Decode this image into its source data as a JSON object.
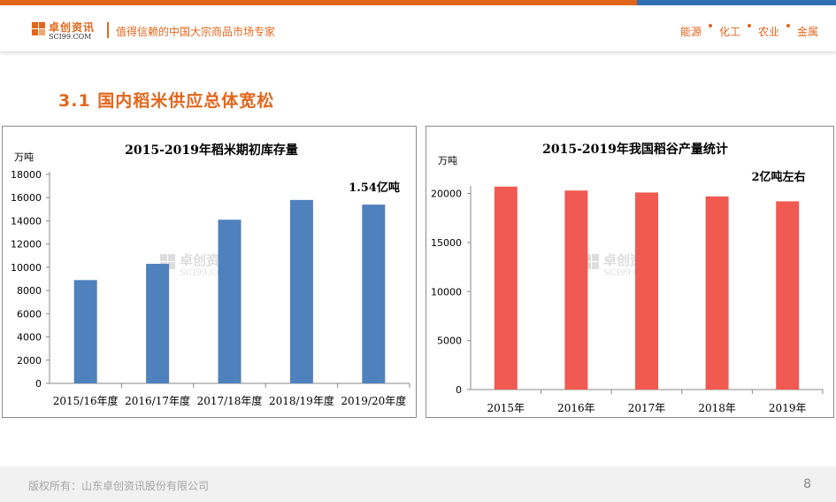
{
  "header": {
    "logo_text_cn": "卓创资讯",
    "logo_text_en": "SCI99.COM",
    "slogan": "值得信赖的中国大宗商品市场专家",
    "nav": [
      "能源",
      "化工",
      "农业",
      "金属"
    ]
  },
  "section_title": "3.1  国内稻米供应总体宽松",
  "watermark": {
    "cn": "卓创资讯",
    "en": "SCI99.COM"
  },
  "chart_data": [
    {
      "type": "bar",
      "title": "2015-2019年稻米期初库存量",
      "ylabel": "万吨",
      "categories": [
        "2015/16年度",
        "2016/17年度",
        "2017/18年度",
        "2018/19年度",
        "2019/20年度"
      ],
      "values": [
        8900,
        10300,
        14100,
        15800,
        15400
      ],
      "ylim": [
        0,
        18000
      ],
      "yticks": [
        "0",
        "2000",
        "4000",
        "6000",
        "8000",
        "10000",
        "12000",
        "14000",
        "16000",
        "18000"
      ],
      "annotation": "1.54亿吨",
      "color": "#4f81bd",
      "grid": false,
      "legend": "none"
    },
    {
      "type": "bar",
      "title": "2015-2019年我国稻谷产量统计",
      "ylabel": "万吨",
      "categories": [
        "2015年",
        "2016年",
        "2017年",
        "2018年",
        "2019年"
      ],
      "values": [
        20700,
        20300,
        20100,
        19700,
        19200
      ],
      "ylim": [
        0,
        20500
      ],
      "yticks": [
        "0",
        "5000",
        "10000",
        "15000",
        "20000"
      ],
      "annotation": "2亿吨左右",
      "color": "#f05a50",
      "grid": false,
      "legend": "none"
    }
  ],
  "footer": {
    "copyright": "版权所有：山东卓创资讯股份有限公司",
    "page_number": "8"
  }
}
